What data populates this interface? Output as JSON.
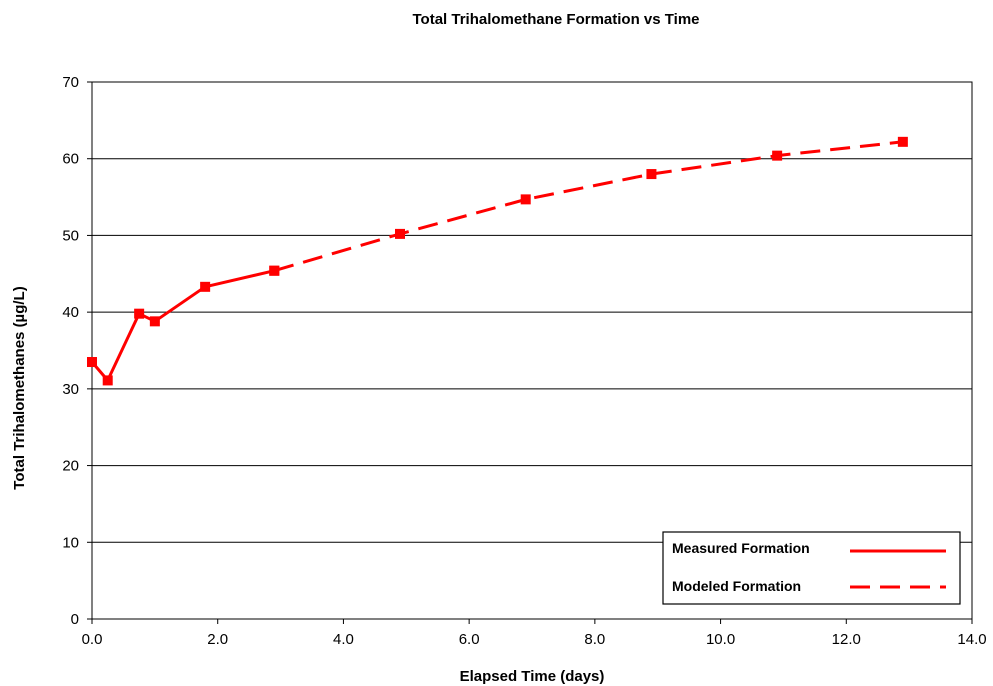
{
  "chart_data": {
    "type": "line",
    "title": "Total Trihalomethane Formation vs Time",
    "xlabel": "Elapsed Time (days)",
    "ylabel": "Total Trihalomethanes (µg/L)",
    "xlim": [
      0,
      14
    ],
    "ylim": [
      0,
      70
    ],
    "x_ticks": [
      "0.0",
      "2.0",
      "4.0",
      "6.0",
      "8.0",
      "10.0",
      "12.0",
      "14.0"
    ],
    "y_ticks": [
      "0",
      "10",
      "20",
      "30",
      "40",
      "50",
      "60",
      "70"
    ],
    "grid": "horizontal",
    "legend_position": "bottom-right",
    "color": "#ff0000",
    "series": [
      {
        "name": "Measured Formation",
        "style": "solid",
        "x": [
          0.0,
          0.25,
          0.75,
          1.0,
          1.8,
          2.9
        ],
        "y": [
          33.5,
          31.1,
          39.8,
          38.8,
          43.3,
          45.4
        ]
      },
      {
        "name": "Modeled Formation",
        "style": "dashed",
        "x": [
          2.9,
          4.9,
          6.9,
          8.9,
          10.9,
          12.9
        ],
        "y": [
          45.4,
          50.2,
          54.7,
          58.0,
          60.4,
          62.2
        ]
      }
    ]
  }
}
